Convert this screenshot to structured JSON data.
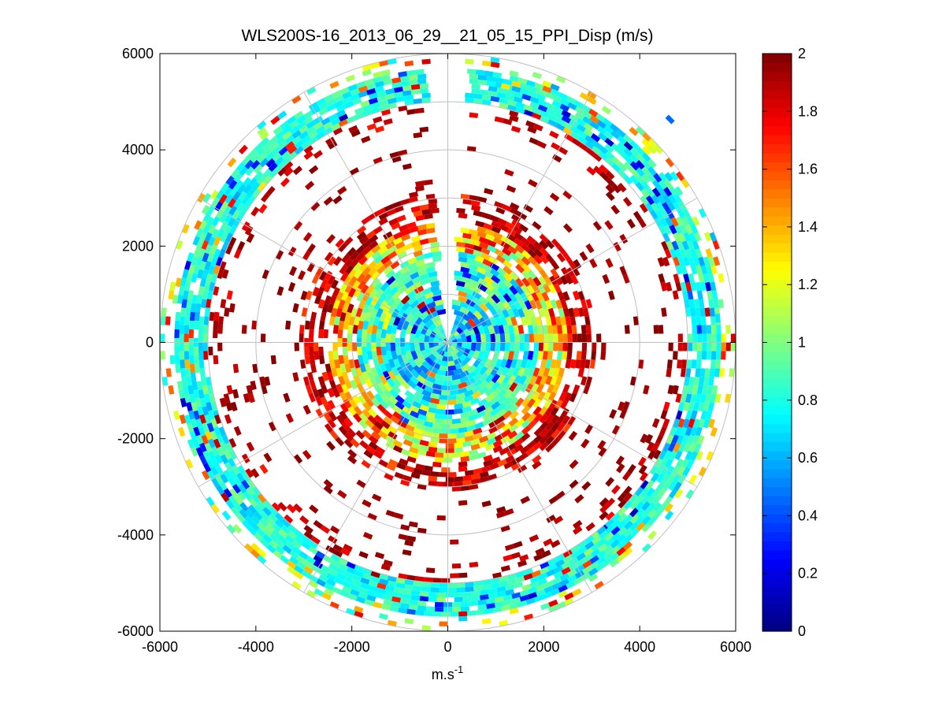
{
  "chart_data": {
    "type": "heatmap",
    "subtype": "polar-ppi",
    "title": "WLS200S-16_2013_06_29__21_05_15_PPI_Disp (m/s)",
    "xlabel": "m.s",
    "xlabel_superscript": "-1",
    "ylabel": "",
    "xlim": [
      -6000,
      6000
    ],
    "ylim": [
      -6000,
      6000
    ],
    "x_ticks": [
      "-6000",
      "-4000",
      "-2000",
      "0",
      "2000",
      "4000",
      "6000"
    ],
    "y_ticks": [
      "6000",
      "4000",
      "2000",
      "0",
      "-2000",
      "-4000",
      "-6000"
    ],
    "x_tick_values": [
      -6000,
      -4000,
      -2000,
      0,
      2000,
      4000,
      6000
    ],
    "y_tick_values": [
      6000,
      4000,
      2000,
      0,
      -2000,
      -4000,
      -6000
    ],
    "polar_grid": {
      "ring_radii": [
        1000,
        2000,
        3000,
        4000,
        5000,
        6000
      ],
      "spoke_angles_deg": [
        0,
        30,
        60,
        90,
        120,
        150,
        180,
        210,
        240,
        270,
        300,
        330
      ]
    },
    "colorbar": {
      "colormap": "jet",
      "min": 0,
      "max": 2,
      "ticks": [
        "2",
        "1.8",
        "1.6",
        "1.4",
        "1.2",
        "1",
        "0.8",
        "0.6",
        "0.4",
        "0.2",
        "0"
      ],
      "tick_values": [
        2,
        1.8,
        1.6,
        1.4,
        1.2,
        1,
        0.8,
        0.6,
        0.4,
        0.2,
        0
      ]
    },
    "scan_gap": {
      "center_azimuth_deg": 90,
      "half_width_deg": 3.5,
      "description": "no data wedge pointing north"
    },
    "range_bands": [
      {
        "r_min": 0,
        "r_max": 1200,
        "fill_ratio": 0.97,
        "value_mean": 0.75,
        "value_spread": 0.4
      },
      {
        "r_min": 1200,
        "r_max": 1900,
        "fill_ratio": 0.95,
        "value_mean": 0.9,
        "value_spread": 0.4
      },
      {
        "r_min": 1900,
        "r_max": 2500,
        "fill_ratio": 0.85,
        "value_mean": 1.4,
        "value_spread": 0.6
      },
      {
        "r_min": 2500,
        "r_max": 3050,
        "fill_ratio": 0.6,
        "value_mean": 1.85,
        "value_spread": 0.3
      },
      {
        "r_min": 3050,
        "r_max": 4600,
        "fill_ratio": 0.09,
        "value_mean": 1.95,
        "value_spread": 0.1
      },
      {
        "r_min": 4600,
        "r_max": 5000,
        "fill_ratio": 0.3,
        "value_mean": 1.9,
        "value_spread": 0.2
      },
      {
        "r_min": 5000,
        "r_max": 5650,
        "fill_ratio": 0.92,
        "value_mean": 0.8,
        "value_spread": 0.25
      },
      {
        "r_min": 5650,
        "r_max": 6000,
        "fill_ratio": 0.25,
        "value_mean": 1.2,
        "value_spread": 0.7
      }
    ],
    "sample_cells": [
      {
        "x": -5850,
        "y": 450,
        "value": 1.75
      },
      {
        "x": -4800,
        "y": -1600,
        "value": 1.95
      },
      {
        "x": 4600,
        "y": 4600,
        "value": 0.45
      },
      {
        "x": 1200,
        "y": 5300,
        "value": 1.3
      },
      {
        "x": 3200,
        "y": -3900,
        "value": 0.65
      },
      {
        "x": -1500,
        "y": -4800,
        "value": 1.95
      },
      {
        "x": 5600,
        "y": 500,
        "value": 0.7
      },
      {
        "x": 0,
        "y": -2900,
        "value": 1.9
      },
      {
        "x": 400,
        "y": 300,
        "value": 0.5
      }
    ]
  }
}
